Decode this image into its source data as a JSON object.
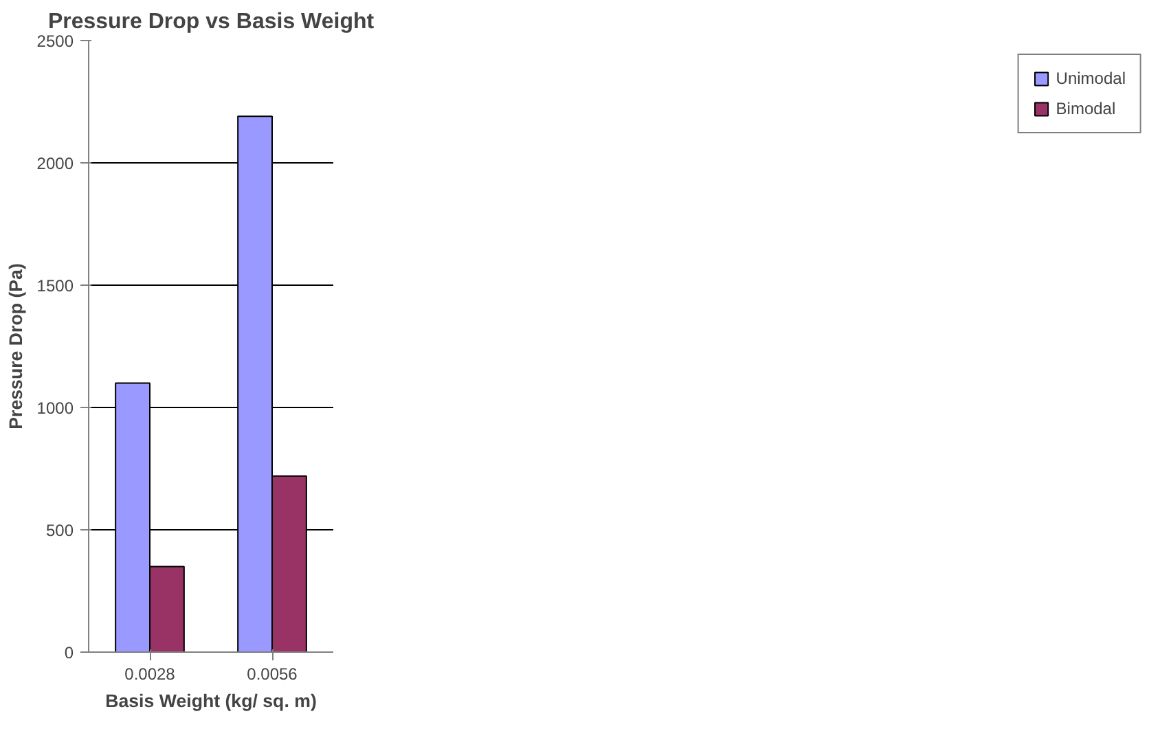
{
  "chart_data": {
    "type": "bar",
    "title": "Pressure Drop vs Basis Weight",
    "xlabel": "Basis Weight (kg/ sq. m)",
    "ylabel": "Pressure Drop (Pa)",
    "categories": [
      "0.0028",
      "0.0056"
    ],
    "series": [
      {
        "name": "Unimodal",
        "color": "#9999ff",
        "values": [
          1100,
          2190
        ]
      },
      {
        "name": "Bimodal",
        "color": "#993366",
        "values": [
          350,
          720
        ]
      }
    ],
    "ylim": [
      0,
      2500
    ],
    "yticks": [
      0,
      500,
      1000,
      1500,
      2000,
      2500
    ],
    "grid": "y",
    "legend": "right"
  }
}
